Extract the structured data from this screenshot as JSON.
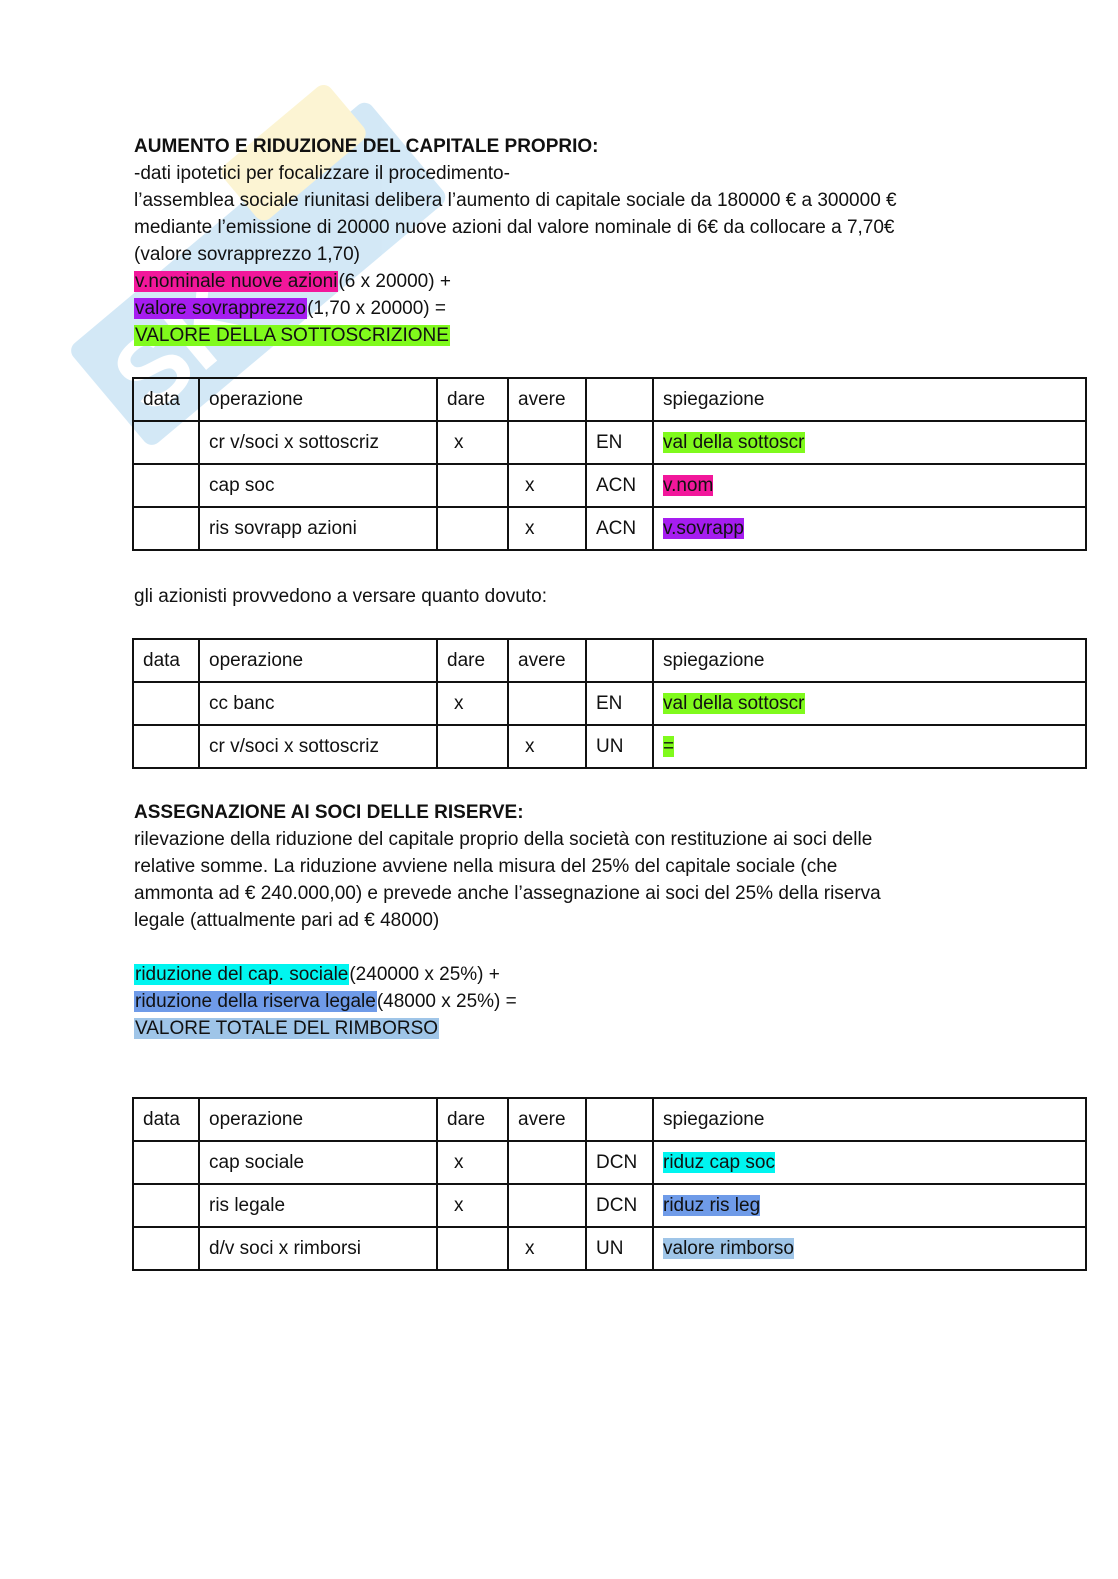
{
  "colors": {
    "magenta": "#f2179b",
    "purple": "#a61df0",
    "green": "#80fa1c",
    "cyan": "#00f5f0",
    "blue": "#6f9be8",
    "lightblue": "#9fc5e8"
  },
  "section1": {
    "title": "AUMENTO E RIDUZIONE DEL CAPITALE PROPRIO:",
    "lines": [
      "-dati ipotetici per focalizzare il procedimento-",
      "l’assemblea sociale riunitasi delibera l’aumento di capitale sociale da 180000 € a 300000 €",
      "mediante l’emissione di 20000 nuove azioni dal valore nominale di 6€ da collocare a 7,70€",
      "(valore sovrapprezzo 1,70)"
    ],
    "formula": [
      {
        "hl": "v.nominale nuove azioni",
        "rest": "(6 x 20000) +"
      },
      {
        "hl": "valore sovrapprezzo",
        "rest": "(1,70 x 20000) ="
      },
      {
        "hl": "VALORE DELLA SOTTOSCRIZIONE",
        "rest": ""
      }
    ]
  },
  "headers": [
    "data",
    "operazione",
    "dare",
    "avere",
    "",
    "spiegazione"
  ],
  "table1": [
    [
      "",
      "cr v/soci x sottoscriz",
      "x",
      "",
      "EN",
      "val della sottoscr"
    ],
    [
      "",
      "cap soc",
      "",
      "x",
      "ACN",
      "v.nom"
    ],
    [
      "",
      "ris sovrapp azioni",
      "",
      "x",
      "ACN",
      "v.sovrapp"
    ]
  ],
  "between": "gli azionisti provvedono a versare quanto dovuto:",
  "table2": [
    [
      "",
      "cc banc",
      "x",
      "",
      "EN",
      "val della sottoscr"
    ],
    [
      "",
      "cr v/soci x sottoscriz",
      "",
      "x",
      "UN",
      "="
    ]
  ],
  "section2": {
    "title": "ASSEGNAZIONE AI SOCI DELLE RISERVE:",
    "lines": [
      "rilevazione della riduzione del capitale proprio della società con restituzione ai soci delle",
      "relative somme. La riduzione avviene nella misura del 25% del capitale sociale (che",
      "ammonta ad € 240.000,00) e prevede anche l’assegnazione ai soci del 25% della riserva",
      "legale (attualmente pari ad € 48000)"
    ],
    "formula": [
      {
        "hl": "riduzione del cap. sociale",
        "rest": "(240000 x 25%) +"
      },
      {
        "hl": "riduzione della riserva legale",
        "rest": "(48000 x 25%) ="
      },
      {
        "hl": "VALORE TOTALE DEL RIMBORSO",
        "rest": ""
      }
    ]
  },
  "table3": [
    [
      "",
      "cap sociale",
      "x",
      "",
      "DCN",
      "riduz cap soc"
    ],
    [
      "",
      "ris legale",
      "x",
      "",
      "DCN",
      "riduz ris leg"
    ],
    [
      "",
      "d/v soci x rimborsi",
      "",
      "x",
      "UN",
      "valore rimborso"
    ]
  ]
}
